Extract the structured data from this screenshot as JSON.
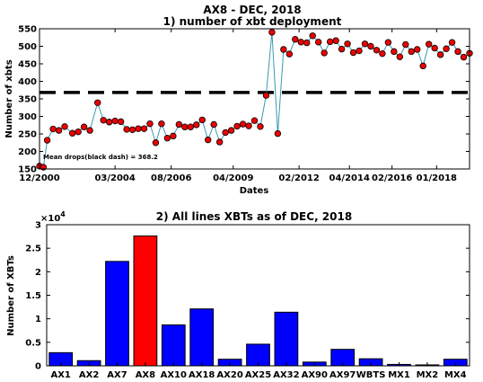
{
  "chart_data": [
    {
      "type": "line",
      "title": "AX8 - DEC, 2018",
      "subtitle": "1) number of xbt deployment",
      "xlabel": "Dates",
      "ylabel": "Number of xbts",
      "ylim": [
        150,
        550
      ],
      "yticks": [
        150,
        200,
        250,
        300,
        350,
        400,
        450,
        500,
        550
      ],
      "xlim": [
        "2000-12",
        "2019-06"
      ],
      "xticks": [
        {
          "date": "2000-12",
          "label": "12/2000"
        },
        {
          "date": "2004-03",
          "label": "03/2004"
        },
        {
          "date": "2006-08",
          "label": "08/2006"
        },
        {
          "date": "2009-04",
          "label": "04/2009"
        },
        {
          "date": "2012-02",
          "label": "02/2012"
        },
        {
          "date": "2014-04",
          "label": "04/2014"
        },
        {
          "date": "2016-02",
          "label": "02/2016"
        },
        {
          "date": "2018-01",
          "label": "01/2018"
        }
      ],
      "grid": false,
      "series_color": "#3a9ab0",
      "marker_color": "#ee0000",
      "mean_line": {
        "value": 368.2,
        "color": "#000000",
        "label": "Mean drops(black dash) = 368.2"
      },
      "x": [
        "2000-12",
        "2001-02",
        "2001-04",
        "2001-07",
        "2001-10",
        "2002-01",
        "2002-05",
        "2002-08",
        "2002-11",
        "2003-02",
        "2003-06",
        "2003-09",
        "2003-12",
        "2004-03",
        "2004-06",
        "2004-09",
        "2004-12",
        "2005-03",
        "2005-06",
        "2005-09",
        "2005-12",
        "2006-03",
        "2006-06",
        "2006-09",
        "2006-12",
        "2007-03",
        "2007-06",
        "2007-09",
        "2007-12",
        "2008-03",
        "2008-06",
        "2008-09",
        "2008-12",
        "2009-03",
        "2009-06",
        "2009-09",
        "2009-12",
        "2010-03",
        "2010-06",
        "2010-09",
        "2010-12",
        "2011-03",
        "2011-06",
        "2011-09",
        "2011-12",
        "2012-03",
        "2012-06",
        "2012-09",
        "2012-12",
        "2013-03",
        "2013-06",
        "2013-09",
        "2013-12",
        "2014-03",
        "2014-06",
        "2014-09",
        "2014-12",
        "2015-03",
        "2015-06",
        "2015-09",
        "2015-12",
        "2016-03",
        "2016-06",
        "2016-09",
        "2016-12",
        "2017-03",
        "2017-06",
        "2017-09",
        "2017-12",
        "2018-03",
        "2018-06",
        "2018-09",
        "2018-12",
        "2019-03",
        "2019-06"
      ],
      "y": [
        158,
        155,
        232,
        264,
        260,
        271,
        252,
        256,
        270,
        260,
        339,
        289,
        284,
        287,
        285,
        263,
        262,
        265,
        265,
        279,
        225,
        279,
        238,
        244,
        277,
        270,
        270,
        276,
        290,
        233,
        277,
        227,
        254,
        260,
        272,
        278,
        273,
        288,
        271,
        360,
        540,
        251,
        491,
        478,
        520,
        512,
        510,
        530,
        512,
        481,
        513,
        516,
        492,
        507,
        482,
        487,
        507,
        500,
        489,
        479,
        511,
        485,
        470,
        505,
        485,
        491,
        444,
        506,
        495,
        476,
        493,
        511,
        485,
        469,
        480
      ]
    },
    {
      "type": "bar",
      "title": "2) All lines XBTs as of DEC, 2018",
      "xlabel": "",
      "ylabel": "Number of XBTs",
      "multiplier_label": "×10",
      "multiplier_exp": "4",
      "ylim": [
        0,
        3
      ],
      "yticks": [
        0,
        0.5,
        1,
        1.5,
        2,
        2.5,
        3
      ],
      "grid": false,
      "categories": [
        "AX1",
        "AX2",
        "AX7",
        "AX8",
        "AX10",
        "AX18",
        "AX20",
        "AX25",
        "AX32",
        "AX90",
        "AX97",
        "WBTS",
        "MX1",
        "MX2",
        "MX4"
      ],
      "values": [
        0.28,
        0.11,
        2.22,
        2.76,
        0.87,
        1.21,
        0.14,
        0.46,
        1.14,
        0.08,
        0.35,
        0.15,
        0.03,
        0.02,
        0.14
      ],
      "bar_color": "#0000ff",
      "highlight_category": "AX8",
      "highlight_color": "#ff0000"
    }
  ]
}
